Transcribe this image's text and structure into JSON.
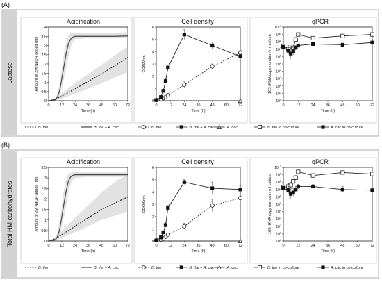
{
  "panel_labels": [
    "(A)",
    "(B)"
  ],
  "row_labels": [
    "Lactose",
    "Total HM carbohydrates"
  ],
  "chart_data": [
    {
      "type": "area",
      "row": 0,
      "col": 0,
      "title": "Acidification",
      "xlabel": "Time (h)",
      "ylabel": "Amount of 2M NaOH added (ml)",
      "x_ticks": [
        0,
        12,
        24,
        36,
        48,
        60,
        72
      ],
      "y_ticks": [
        0,
        0.5,
        1,
        1.5,
        2,
        2.5,
        3,
        3.5,
        4
      ],
      "ylim": [
        0,
        4
      ],
      "xlim": [
        0,
        72
      ],
      "series": [
        {
          "name": "B. the",
          "style": "dashed",
          "x": [
            0,
            6,
            12,
            18,
            24,
            30,
            36,
            42,
            48,
            54,
            60,
            66,
            72
          ],
          "y": [
            0,
            0.08,
            0.25,
            0.45,
            0.65,
            0.85,
            1.05,
            1.25,
            1.45,
            1.68,
            1.9,
            2.12,
            2.35
          ],
          "band_low": [
            0,
            0.03,
            0.12,
            0.25,
            0.38,
            0.52,
            0.66,
            0.8,
            0.95,
            1.1,
            1.25,
            1.4,
            1.55
          ],
          "band_high": [
            0,
            0.15,
            0.4,
            0.7,
            0.95,
            1.2,
            1.45,
            1.7,
            1.95,
            2.2,
            2.45,
            2.7,
            2.95
          ]
        },
        {
          "name": "B. the + A. cac",
          "style": "solid",
          "x": [
            0,
            6,
            8,
            10,
            12,
            14,
            16,
            18,
            20,
            22,
            24,
            36,
            48,
            60,
            72
          ],
          "y": [
            0,
            0.05,
            0.2,
            0.55,
            1.2,
            1.9,
            2.6,
            3.1,
            3.35,
            3.45,
            3.5,
            3.5,
            3.5,
            3.5,
            3.52
          ],
          "band_low": [
            0,
            0.02,
            0.08,
            0.3,
            0.7,
            1.2,
            1.8,
            2.4,
            2.9,
            3.2,
            3.35,
            3.4,
            3.42,
            3.42,
            3.45
          ],
          "band_high": [
            0,
            0.12,
            0.4,
            0.95,
            1.8,
            2.6,
            3.2,
            3.55,
            3.65,
            3.68,
            3.7,
            3.7,
            3.7,
            3.7,
            3.72
          ]
        }
      ],
      "legend": [
        "B. the",
        "B. the + A. cac"
      ]
    },
    {
      "type": "line",
      "row": 0,
      "col": 1,
      "title": "Cell density",
      "xlabel": "Time (h)",
      "ylabel": "OD600nm",
      "x_ticks": [
        0,
        12,
        24,
        36,
        48,
        60,
        72
      ],
      "y_ticks": [
        0,
        1,
        2,
        3,
        4,
        5,
        6
      ],
      "ylim": [
        0,
        6
      ],
      "xlim": [
        0,
        72
      ],
      "series": [
        {
          "name": "B. the",
          "marker": "open-circle",
          "style": "dashed",
          "x": [
            0,
            4,
            6,
            8,
            10,
            24,
            48,
            72
          ],
          "y": [
            0.05,
            0.1,
            0.2,
            0.3,
            0.45,
            1.3,
            2.8,
            3.9
          ],
          "err": [
            0.02,
            0.03,
            0.05,
            0.05,
            0.1,
            0.25,
            0.2,
            0.2
          ]
        },
        {
          "name": "B. the + A. cac",
          "marker": "filled-square",
          "style": "solid",
          "x": [
            0,
            4,
            6,
            8,
            10,
            24,
            48,
            72
          ],
          "y": [
            0.05,
            0.3,
            0.8,
            1.6,
            2.7,
            5.4,
            4.5,
            3.6
          ],
          "err": [
            0.02,
            0.05,
            0.1,
            0.2,
            0.2,
            0.4,
            0.3,
            0.2
          ]
        },
        {
          "name": "A. cac",
          "marker": "open-triangle",
          "style": "solid",
          "x": [
            0,
            72
          ],
          "y": [
            0,
            0
          ],
          "err": [
            0,
            0
          ]
        }
      ],
      "legend": [
        "B. the",
        "B. the + A. cac",
        "A. cac"
      ]
    },
    {
      "type": "line",
      "row": 0,
      "col": 2,
      "title": "qPCR",
      "xlabel": "Time (h)",
      "ylabel": "16S rRNA copy number / ml culture",
      "x_ticks": [
        0,
        12,
        24,
        36,
        48,
        60,
        72
      ],
      "y_ticks_exp": [
        0,
        1,
        2,
        3,
        4,
        5,
        6,
        7,
        8,
        9,
        10
      ],
      "ylim_exp": [
        0,
        10
      ],
      "xlim": [
        0,
        72
      ],
      "series": [
        {
          "name": "B. the in co-culture",
          "marker": "open-square",
          "x": [
            0,
            4,
            6,
            8,
            10,
            12,
            24,
            48,
            72
          ],
          "y": [
            7.4,
            7.0,
            6.8,
            7.2,
            8.3,
            9.0,
            8.5,
            8.8,
            9.0
          ],
          "err": [
            0.2,
            0.5,
            0.6,
            0.5,
            0.3,
            0.2,
            0.2,
            0.2,
            0.2
          ]
        },
        {
          "name": "A. cac in co-culture",
          "marker": "filled-square",
          "x": [
            0,
            4,
            6,
            8,
            10,
            12,
            24,
            48,
            72
          ],
          "y": [
            7.3,
            6.8,
            6.4,
            6.7,
            7.2,
            7.5,
            7.7,
            7.6,
            7.9
          ],
          "err": [
            0.2,
            0.5,
            0.7,
            0.5,
            0.3,
            0.2,
            0.2,
            0.2,
            0.2
          ]
        }
      ],
      "legend": [
        "B. the in co-culture",
        "A. cac in co-culture"
      ]
    },
    {
      "type": "area",
      "row": 1,
      "col": 0,
      "title": "Acidification",
      "xlabel": "Time (h)",
      "ylabel": "Amount of 2M NaOH added (ml)",
      "x_ticks": [
        0,
        12,
        24,
        36,
        48,
        60,
        72
      ],
      "y_ticks": [
        0,
        0.5,
        1,
        1.5,
        2,
        2.5,
        3,
        3.5
      ],
      "ylim": [
        0,
        3.5
      ],
      "xlim": [
        0,
        72
      ],
      "series": [
        {
          "name": "B. the",
          "style": "dashed",
          "x": [
            0,
            6,
            12,
            18,
            24,
            30,
            36,
            42,
            48,
            54,
            60,
            66,
            72
          ],
          "y": [
            0,
            0.1,
            0.3,
            0.5,
            0.7,
            0.9,
            1.1,
            1.3,
            1.5,
            1.65,
            1.8,
            1.95,
            2.1
          ],
          "band_low": [
            0,
            0.04,
            0.15,
            0.28,
            0.42,
            0.55,
            0.7,
            0.85,
            1.0,
            1.1,
            1.2,
            1.3,
            1.4
          ],
          "band_high": [
            0,
            0.2,
            0.5,
            0.8,
            1.1,
            1.4,
            1.7,
            2.0,
            2.3,
            2.55,
            2.8,
            3.0,
            3.1
          ]
        },
        {
          "name": "B. the + A. cac",
          "style": "solid",
          "x": [
            0,
            6,
            8,
            10,
            12,
            14,
            16,
            18,
            20,
            22,
            24,
            36,
            48,
            60,
            72
          ],
          "y": [
            0,
            0.05,
            0.2,
            0.55,
            1.15,
            1.8,
            2.4,
            2.85,
            3.05,
            3.12,
            3.15,
            3.15,
            3.15,
            3.15,
            3.15
          ],
          "band_low": [
            0,
            0.02,
            0.08,
            0.3,
            0.7,
            1.15,
            1.7,
            2.3,
            2.7,
            2.9,
            3.0,
            3.05,
            3.05,
            3.05,
            3.05
          ],
          "band_high": [
            0,
            0.12,
            0.4,
            0.95,
            1.7,
            2.45,
            2.95,
            3.2,
            3.25,
            3.27,
            3.3,
            3.3,
            3.3,
            3.3,
            3.3
          ]
        }
      ],
      "legend": [
        "B. the",
        "B. the + A. cac"
      ]
    },
    {
      "type": "line",
      "row": 1,
      "col": 1,
      "title": "Cell density",
      "xlabel": "Time (h)",
      "ylabel": "OD600nm",
      "x_ticks": [
        0,
        12,
        24,
        36,
        48,
        60,
        72
      ],
      "y_ticks": [
        0,
        1,
        2,
        3,
        4,
        5,
        6
      ],
      "ylim": [
        0,
        6
      ],
      "xlim": [
        0,
        72
      ],
      "series": [
        {
          "name": "B. the",
          "marker": "open-circle",
          "style": "dashed",
          "x": [
            0,
            4,
            6,
            8,
            10,
            24,
            48,
            72
          ],
          "y": [
            0.05,
            0.1,
            0.2,
            0.35,
            0.5,
            1.2,
            2.9,
            3.5
          ],
          "err": [
            0.02,
            0.03,
            0.05,
            0.05,
            0.1,
            0.25,
            0.5,
            0.3
          ]
        },
        {
          "name": "B. the + A. cac",
          "marker": "filled-square",
          "style": "solid",
          "x": [
            0,
            4,
            6,
            8,
            10,
            24,
            48,
            72
          ],
          "y": [
            0.05,
            0.3,
            0.7,
            1.3,
            2.7,
            4.8,
            4.3,
            4.2
          ],
          "err": [
            0.02,
            0.05,
            0.1,
            0.2,
            0.2,
            0.2,
            0.5,
            0.3
          ]
        },
        {
          "name": "A. cac",
          "marker": "open-triangle",
          "style": "solid",
          "x": [
            0,
            72
          ],
          "y": [
            0,
            0
          ],
          "err": [
            0,
            0
          ]
        }
      ],
      "legend": [
        "B. the",
        "B. the + A. cac",
        "A. cac"
      ]
    },
    {
      "type": "line",
      "row": 1,
      "col": 2,
      "title": "qPCR",
      "xlabel": "Time (h)",
      "ylabel": "16S rRNA copy number / ml culture",
      "x_ticks": [
        0,
        12,
        24,
        36,
        48,
        60,
        72
      ],
      "y_ticks_exp": [
        0,
        1,
        2,
        3,
        4,
        5,
        6,
        7,
        8,
        9,
        10
      ],
      "ylim_exp": [
        0,
        10
      ],
      "xlim": [
        0,
        72
      ],
      "series": [
        {
          "name": "B. the in co-culture",
          "marker": "open-square",
          "x": [
            0,
            4,
            6,
            8,
            10,
            12,
            24,
            48,
            72
          ],
          "y": [
            7.3,
            7.4,
            7.6,
            8.1,
            8.6,
            9.4,
            8.9,
            9.3,
            9.1
          ],
          "err": [
            0.2,
            0.4,
            0.4,
            0.3,
            0.3,
            0.2,
            0.2,
            0.2,
            0.3
          ]
        },
        {
          "name": "A. cac in co-culture",
          "marker": "filled-square",
          "x": [
            0,
            4,
            6,
            8,
            10,
            12,
            24,
            48,
            72
          ],
          "y": [
            7.2,
            6.9,
            6.4,
            6.6,
            7.0,
            7.4,
            7.4,
            7.0,
            6.9
          ],
          "err": [
            0.2,
            0.5,
            0.7,
            0.5,
            0.4,
            0.3,
            0.3,
            0.4,
            0.7
          ]
        }
      ],
      "legend": [
        "B. the in co-culture",
        "A. cac in co-culture"
      ]
    }
  ]
}
